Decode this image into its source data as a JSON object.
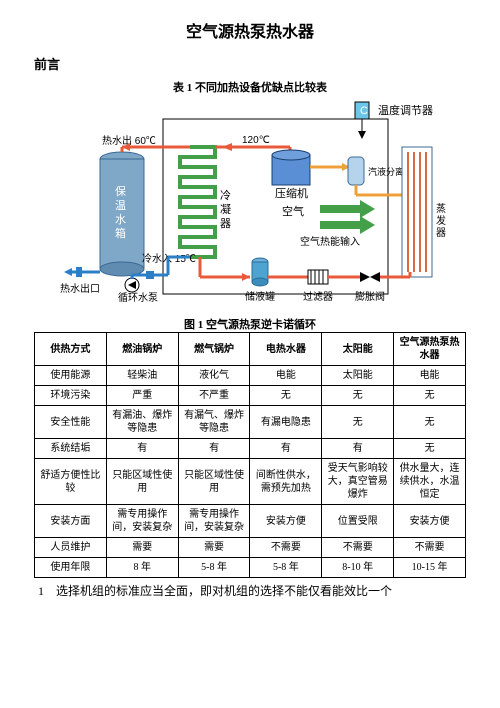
{
  "page": {
    "title": "空气源热泵热水器",
    "preface": "前言",
    "table_caption": "表 1 不同加热设备优缺点比较表",
    "figure_caption": "图 1 空气源热泵逆卡诺循环",
    "bottom_text": "1　选择机组的标准应当全面，即对机组的选择不能仅看能效比一个"
  },
  "diagram": {
    "colors": {
      "tank_fill": "#7ea7c8",
      "tank_stroke": "#3b6893",
      "pipe_hot": "#e85a3a",
      "pipe_cold": "#2a7fc7",
      "coil_green": "#44a048",
      "compressor_fill": "#5a8fd6",
      "drier_fill": "#4fa3d0",
      "separator_fill": "#b5d4ec",
      "evaporator_fill": "#d76b46",
      "thermostat_fill": "#6dc6ea",
      "box_stroke": "#000000",
      "bg_panel": "#ffffff"
    },
    "labels": {
      "thermostat": "温度调节器",
      "thermostat_c": "C",
      "hot_out_temp": "热水出 60℃",
      "tank": "保温水箱",
      "condenser": "冷凝器",
      "cold_in": "冷水入 15℃",
      "hot_out": "热水出口",
      "pump": "循环水泵",
      "receiver": "储液罐",
      "comp_temp": "120℃",
      "compressor": "压缩机",
      "air_label": "空气",
      "air_heat": "空气热能输入",
      "separator": "汽液分离器",
      "evaporator": "蒸发器",
      "filter": "过滤器",
      "exp_valve": "膨胀阀"
    }
  },
  "table": {
    "columns": [
      "供热方式",
      "燃油锅炉",
      "燃气锅炉",
      "电热水器",
      "太阳能",
      "空气源热泵热水器"
    ],
    "rows": [
      [
        "使用能源",
        "轻柴油",
        "液化气",
        "电能",
        "太阳能",
        "电能"
      ],
      [
        "环境污染",
        "严重",
        "不严重",
        "无",
        "无",
        "无"
      ],
      [
        "安全性能",
        "有漏油、爆炸等隐患",
        "有漏气、爆炸等隐患",
        "有漏电隐患",
        "无",
        "无"
      ],
      [
        "系统结垢",
        "有",
        "有",
        "有",
        "有",
        "无"
      ],
      [
        "舒适方便性比较",
        "只能区域性使用",
        "只能区域性使用",
        "间断性供水，需预先加热",
        "受天气影响较大，真空管易爆炸",
        "供水量大，连续供水，水温恒定"
      ],
      [
        "安装方面",
        "需专用操作间，安装复杂",
        "需专用操作间，安装复杂",
        "安装方便",
        "位置受限",
        "安装方便"
      ],
      [
        "人员维护",
        "需要",
        "需要",
        "不需要",
        "不需要",
        "不需要"
      ],
      [
        "使用年限",
        "8 年",
        "5-8 年",
        "5-8 年",
        "8-10 年",
        "10-15 年"
      ]
    ]
  }
}
